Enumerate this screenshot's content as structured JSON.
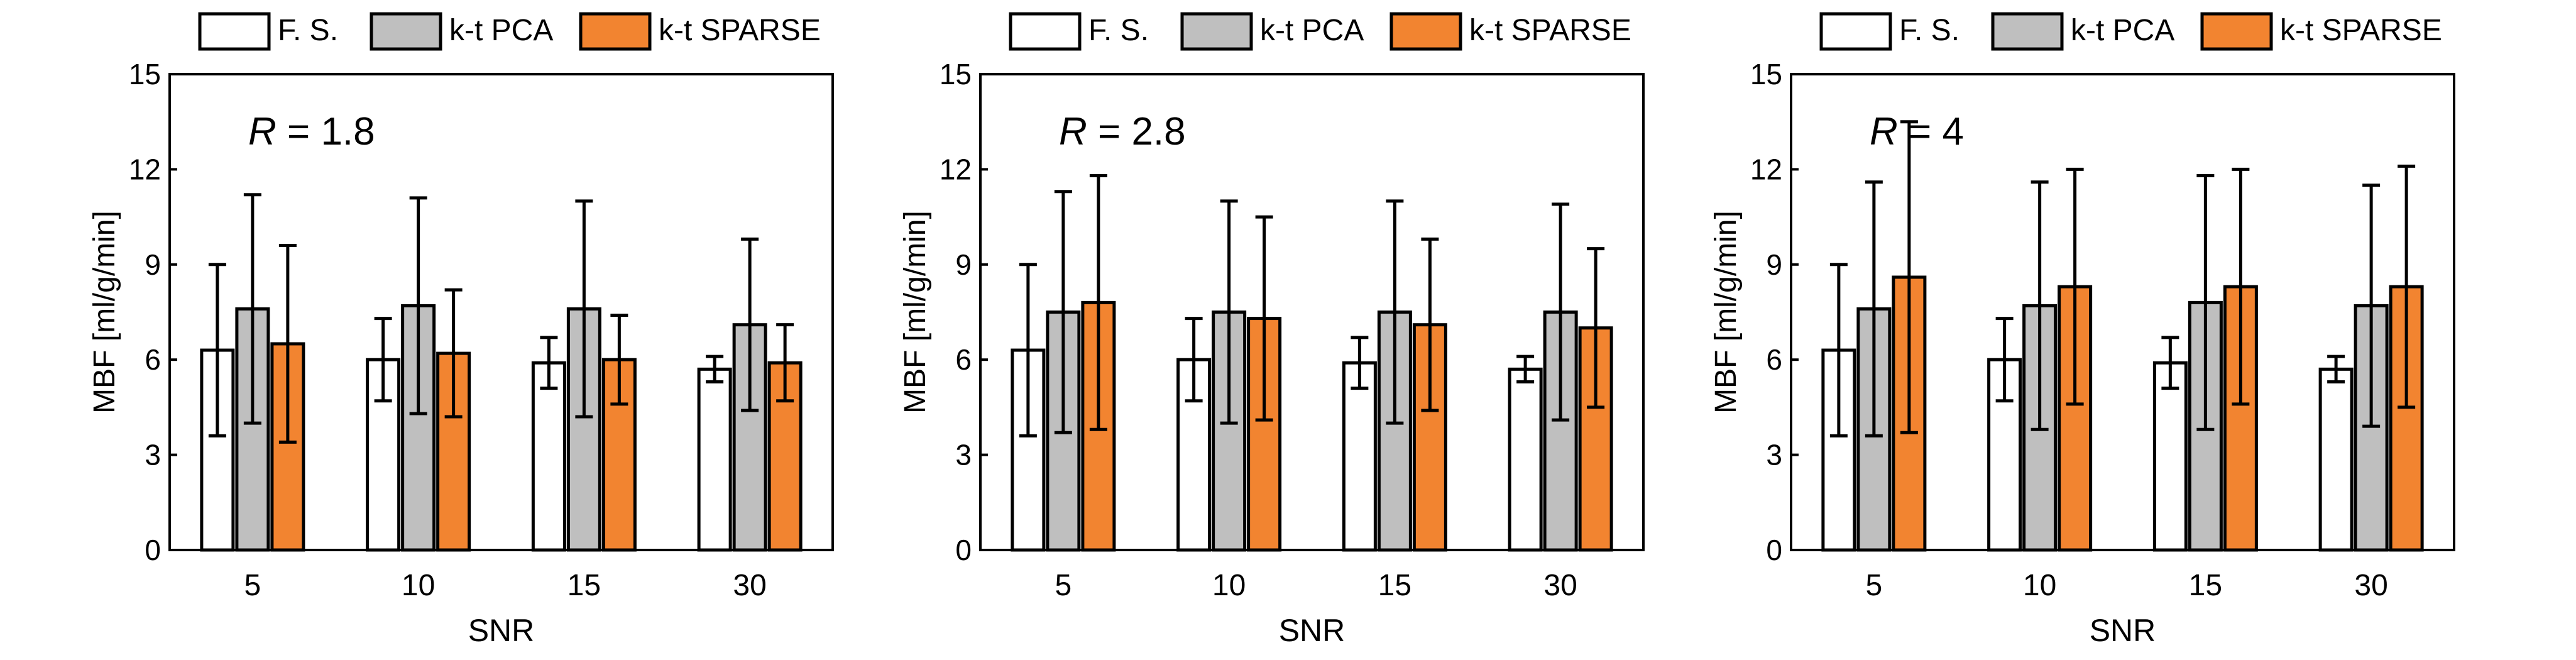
{
  "chart_data": [
    {
      "type": "bar",
      "annotation": "R = 1.8",
      "annotation_var": "R",
      "annotation_rest": " = 1.8",
      "xlabel": "SNR",
      "ylabel": "MBF [ml/g/min]",
      "categories": [
        "5",
        "10",
        "15",
        "30"
      ],
      "ylim": [
        0,
        15
      ],
      "yticks": [
        "0",
        "3",
        "6",
        "9",
        "12",
        "15"
      ],
      "legend_position": "top",
      "series": [
        {
          "name": "F. S.",
          "color": "#ffffff",
          "values": [
            6.3,
            6.0,
            5.9,
            5.7
          ],
          "err": [
            2.7,
            1.3,
            0.8,
            0.4
          ]
        },
        {
          "name": "k-t PCA",
          "color": "#bfbfbf",
          "values": [
            7.6,
            7.7,
            7.6,
            7.1
          ],
          "err": [
            3.6,
            3.4,
            3.4,
            2.7
          ]
        },
        {
          "name": "k-t SPARSE",
          "color": "#f28430",
          "values": [
            6.5,
            6.2,
            6.0,
            5.9
          ],
          "err": [
            3.1,
            2.0,
            1.4,
            1.2
          ]
        }
      ]
    },
    {
      "type": "bar",
      "annotation": "R = 2.8",
      "annotation_var": "R",
      "annotation_rest": " = 2.8",
      "xlabel": "SNR",
      "ylabel": "MBF [ml/g/min]",
      "categories": [
        "5",
        "10",
        "15",
        "30"
      ],
      "ylim": [
        0,
        15
      ],
      "yticks": [
        "0",
        "3",
        "6",
        "9",
        "12",
        "15"
      ],
      "legend_position": "top",
      "series": [
        {
          "name": "F. S.",
          "color": "#ffffff",
          "values": [
            6.3,
            6.0,
            5.9,
            5.7
          ],
          "err": [
            2.7,
            1.3,
            0.8,
            0.4
          ]
        },
        {
          "name": "k-t PCA",
          "color": "#bfbfbf",
          "values": [
            7.5,
            7.5,
            7.5,
            7.5
          ],
          "err": [
            3.8,
            3.5,
            3.5,
            3.4
          ]
        },
        {
          "name": "k-t SPARSE",
          "color": "#f28430",
          "values": [
            7.8,
            7.3,
            7.1,
            7.0
          ],
          "err": [
            4.0,
            3.2,
            2.7,
            2.5
          ]
        }
      ]
    },
    {
      "type": "bar",
      "annotation": "R = 4",
      "annotation_var": "R",
      "annotation_rest": " = 4",
      "xlabel": "SNR",
      "ylabel": "MBF [ml/g/min]",
      "categories": [
        "5",
        "10",
        "15",
        "30"
      ],
      "ylim": [
        0,
        15
      ],
      "yticks": [
        "0",
        "3",
        "6",
        "9",
        "12",
        "15"
      ],
      "legend_position": "top",
      "series": [
        {
          "name": "F. S.",
          "color": "#ffffff",
          "values": [
            6.3,
            6.0,
            5.9,
            5.7
          ],
          "err": [
            2.7,
            1.3,
            0.8,
            0.4
          ]
        },
        {
          "name": "k-t PCA",
          "color": "#bfbfbf",
          "values": [
            7.6,
            7.7,
            7.8,
            7.7
          ],
          "err": [
            4.0,
            3.9,
            4.0,
            3.8
          ]
        },
        {
          "name": "k-t SPARSE",
          "color": "#f28430",
          "values": [
            8.6,
            8.3,
            8.3,
            8.3
          ],
          "err": [
            4.9,
            3.7,
            3.7,
            3.8
          ]
        }
      ]
    }
  ]
}
